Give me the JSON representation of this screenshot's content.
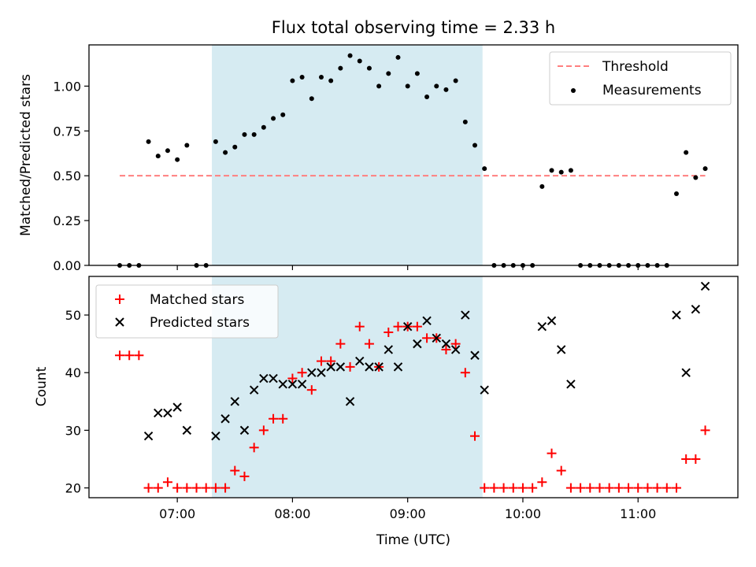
{
  "chart_data": [
    {
      "type": "scatter",
      "title": "Flux total observing time = 2.33 h",
      "xlabel": "",
      "ylabel": "Matched/Predicted stars",
      "xlim": [
        "06:14",
        "11:52"
      ],
      "ylim": [
        0,
        1.23
      ],
      "yticks": [
        "0.00",
        "0.25",
        "0.50",
        "0.75",
        "1.00"
      ],
      "shaded_interval": [
        "07:18",
        "09:39"
      ],
      "legend_position": "top-right",
      "threshold": {
        "name": "Threshold",
        "value": 0.5,
        "x_range": [
          "06:30",
          "11:35"
        ],
        "color": "#ff7f7f"
      },
      "series": [
        {
          "name": "Measurements",
          "color": "#000000",
          "points": [
            [
              "06:30",
              0
            ],
            [
              "06:35",
              0
            ],
            [
              "06:40",
              0
            ],
            [
              "06:45",
              0.69
            ],
            [
              "06:50",
              0.61
            ],
            [
              "06:55",
              0.64
            ],
            [
              "07:00",
              0.59
            ],
            [
              "07:05",
              0.67
            ],
            [
              "07:10",
              0
            ],
            [
              "07:15",
              0
            ],
            [
              "07:20",
              0.69
            ],
            [
              "07:25",
              0.63
            ],
            [
              "07:30",
              0.66
            ],
            [
              "07:35",
              0.73
            ],
            [
              "07:40",
              0.73
            ],
            [
              "07:45",
              0.77
            ],
            [
              "07:50",
              0.82
            ],
            [
              "07:55",
              0.84
            ],
            [
              "08:00",
              1.03
            ],
            [
              "08:05",
              1.05
            ],
            [
              "08:10",
              0.93
            ],
            [
              "08:15",
              1.05
            ],
            [
              "08:20",
              1.03
            ],
            [
              "08:25",
              1.1
            ],
            [
              "08:30",
              1.17
            ],
            [
              "08:35",
              1.14
            ],
            [
              "08:40",
              1.1
            ],
            [
              "08:45",
              1.0
            ],
            [
              "08:50",
              1.07
            ],
            [
              "08:55",
              1.16
            ],
            [
              "09:00",
              1.0
            ],
            [
              "09:05",
              1.07
            ],
            [
              "09:10",
              0.94
            ],
            [
              "09:15",
              1.0
            ],
            [
              "09:20",
              0.98
            ],
            [
              "09:25",
              1.03
            ],
            [
              "09:30",
              0.8
            ],
            [
              "09:35",
              0.67
            ],
            [
              "09:40",
              0.54
            ],
            [
              "09:45",
              0
            ],
            [
              "09:50",
              0
            ],
            [
              "09:55",
              0
            ],
            [
              "10:00",
              0
            ],
            [
              "10:05",
              0
            ],
            [
              "10:10",
              0.44
            ],
            [
              "10:15",
              0.53
            ],
            [
              "10:20",
              0.52
            ],
            [
              "10:25",
              0.53
            ],
            [
              "10:30",
              0
            ],
            [
              "10:35",
              0
            ],
            [
              "10:40",
              0
            ],
            [
              "10:45",
              0
            ],
            [
              "10:50",
              0
            ],
            [
              "10:55",
              0
            ],
            [
              "11:00",
              0
            ],
            [
              "11:05",
              0
            ],
            [
              "11:10",
              0
            ],
            [
              "11:15",
              0
            ],
            [
              "11:20",
              0.4
            ],
            [
              "11:25",
              0.63
            ],
            [
              "11:30",
              0.49
            ],
            [
              "11:35",
              0.54
            ]
          ]
        }
      ]
    },
    {
      "type": "scatter",
      "title": "",
      "xlabel": "Time (UTC)",
      "ylabel": "Count",
      "xlim": [
        "06:14",
        "11:52"
      ],
      "ylim": [
        18.3,
        56.7
      ],
      "yticks": [
        "20",
        "30",
        "40",
        "50"
      ],
      "xticks": [
        "07:00",
        "08:00",
        "09:00",
        "10:00",
        "11:00"
      ],
      "shaded_interval": [
        "07:18",
        "09:39"
      ],
      "legend_position": "top-left",
      "series": [
        {
          "name": "Matched stars",
          "color": "#ff0000",
          "marker": "+",
          "points": [
            [
              "06:30",
              43
            ],
            [
              "06:35",
              43
            ],
            [
              "06:40",
              43
            ],
            [
              "06:45",
              20
            ],
            [
              "06:50",
              20
            ],
            [
              "06:55",
              21
            ],
            [
              "07:00",
              20
            ],
            [
              "07:05",
              20
            ],
            [
              "07:10",
              20
            ],
            [
              "07:15",
              20
            ],
            [
              "07:20",
              20
            ],
            [
              "07:25",
              20
            ],
            [
              "07:30",
              23
            ],
            [
              "07:35",
              22
            ],
            [
              "07:40",
              27
            ],
            [
              "07:45",
              30
            ],
            [
              "07:50",
              32
            ],
            [
              "07:55",
              32
            ],
            [
              "08:00",
              39
            ],
            [
              "08:05",
              40
            ],
            [
              "08:10",
              37
            ],
            [
              "08:15",
              42
            ],
            [
              "08:20",
              42
            ],
            [
              "08:25",
              45
            ],
            [
              "08:30",
              41
            ],
            [
              "08:35",
              48
            ],
            [
              "08:40",
              45
            ],
            [
              "08:45",
              41
            ],
            [
              "08:50",
              47
            ],
            [
              "08:55",
              48
            ],
            [
              "09:00",
              48
            ],
            [
              "09:05",
              48
            ],
            [
              "09:10",
              46
            ],
            [
              "09:15",
              46
            ],
            [
              "09:20",
              44
            ],
            [
              "09:25",
              45
            ],
            [
              "09:30",
              40
            ],
            [
              "09:35",
              29
            ],
            [
              "09:40",
              20
            ],
            [
              "09:45",
              20
            ],
            [
              "09:50",
              20
            ],
            [
              "09:55",
              20
            ],
            [
              "10:00",
              20
            ],
            [
              "10:05",
              20
            ],
            [
              "10:10",
              21
            ],
            [
              "10:15",
              26
            ],
            [
              "10:20",
              23
            ],
            [
              "10:25",
              20
            ],
            [
              "10:30",
              20
            ],
            [
              "10:35",
              20
            ],
            [
              "10:40",
              20
            ],
            [
              "10:45",
              20
            ],
            [
              "10:50",
              20
            ],
            [
              "10:55",
              20
            ],
            [
              "11:00",
              20
            ],
            [
              "11:05",
              20
            ],
            [
              "11:10",
              20
            ],
            [
              "11:15",
              20
            ],
            [
              "11:20",
              20
            ],
            [
              "11:25",
              25
            ],
            [
              "11:30",
              25
            ],
            [
              "11:35",
              30
            ]
          ]
        },
        {
          "name": "Predicted stars",
          "color": "#000000",
          "marker": "x",
          "points": [
            [
              "06:45",
              29
            ],
            [
              "06:50",
              33
            ],
            [
              "06:55",
              33
            ],
            [
              "07:00",
              34
            ],
            [
              "07:05",
              30
            ],
            [
              "07:20",
              29
            ],
            [
              "07:25",
              32
            ],
            [
              "07:30",
              35
            ],
            [
              "07:35",
              30
            ],
            [
              "07:40",
              37
            ],
            [
              "07:45",
              39
            ],
            [
              "07:50",
              39
            ],
            [
              "07:55",
              38
            ],
            [
              "08:00",
              38
            ],
            [
              "08:05",
              38
            ],
            [
              "08:10",
              40
            ],
            [
              "08:15",
              40
            ],
            [
              "08:20",
              41
            ],
            [
              "08:25",
              41
            ],
            [
              "08:30",
              35
            ],
            [
              "08:35",
              42
            ],
            [
              "08:40",
              41
            ],
            [
              "08:45",
              41
            ],
            [
              "08:50",
              44
            ],
            [
              "08:55",
              41
            ],
            [
              "09:00",
              48
            ],
            [
              "09:05",
              45
            ],
            [
              "09:10",
              49
            ],
            [
              "09:15",
              46
            ],
            [
              "09:20",
              45
            ],
            [
              "09:25",
              44
            ],
            [
              "09:30",
              50
            ],
            [
              "09:35",
              43
            ],
            [
              "09:40",
              37
            ],
            [
              "10:10",
              48
            ],
            [
              "10:15",
              49
            ],
            [
              "10:20",
              44
            ],
            [
              "10:25",
              38
            ],
            [
              "11:20",
              50
            ],
            [
              "11:25",
              40
            ],
            [
              "11:30",
              51
            ],
            [
              "11:35",
              55
            ]
          ]
        }
      ]
    }
  ]
}
